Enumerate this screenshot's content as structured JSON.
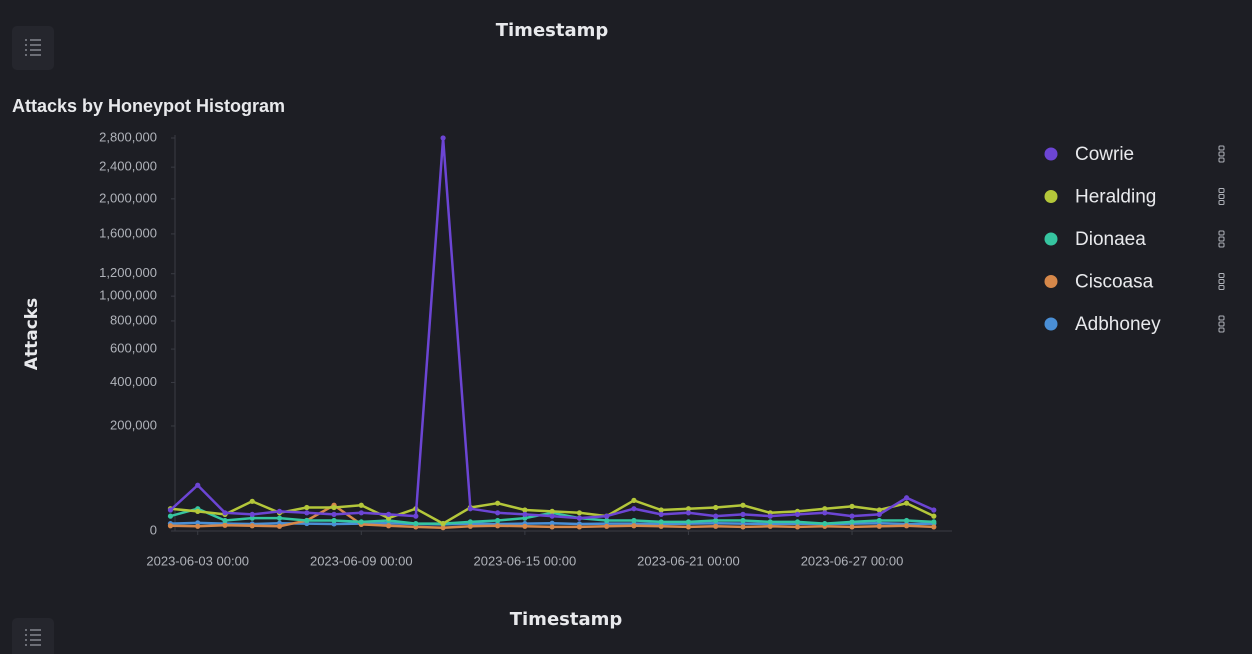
{
  "chart_data": {
    "type": "line",
    "header": "Timestamp",
    "title": "Attacks by Honeypot Histogram",
    "y_label": "Attacks",
    "x_label": "Timestamp",
    "yscale": "sqrt",
    "legend": "right",
    "x": [
      "2023-06-02 00:00",
      "2023-06-03 00:00",
      "2023-06-04 00:00",
      "2023-06-05 00:00",
      "2023-06-06 00:00",
      "2023-06-07 00:00",
      "2023-06-08 00:00",
      "2023-06-09 00:00",
      "2023-06-10 00:00",
      "2023-06-11 00:00",
      "2023-06-12 00:00",
      "2023-06-13 00:00",
      "2023-06-14 00:00",
      "2023-06-15 00:00",
      "2023-06-16 00:00",
      "2023-06-17 00:00",
      "2023-06-18 00:00",
      "2023-06-19 00:00",
      "2023-06-20 00:00",
      "2023-06-21 00:00",
      "2023-06-22 00:00",
      "2023-06-23 00:00",
      "2023-06-24 00:00",
      "2023-06-25 00:00",
      "2023-06-26 00:00",
      "2023-06-27 00:00",
      "2023-06-28 00:00",
      "2023-06-29 00:00",
      "2023-06-30 00:00"
    ],
    "xlim": [
      "2023-06-02 04:00",
      "2023-06-30 16:00"
    ],
    "xticks": [
      "2023-06-03 00:00",
      "2023-06-09 00:00",
      "2023-06-15 00:00",
      "2023-06-21 00:00",
      "2023-06-27 00:00"
    ],
    "ylim": [
      0,
      2800000
    ],
    "yticks": [
      0,
      {
        "value": 200000,
        "label": "200,000"
      },
      {
        "value": 400000,
        "label": "400,000"
      },
      {
        "value": 600000,
        "label": "600,000"
      },
      {
        "value": 800000,
        "label": "800,000"
      },
      {
        "value": 1000000,
        "label": "1,000,000"
      },
      {
        "value": 1200000,
        "label": "1,200,000"
      },
      {
        "value": 1600000,
        "label": "1,600,000"
      },
      {
        "value": 2000000,
        "label": "2,000,000"
      },
      {
        "value": 2400000,
        "label": "2,400,000"
      },
      {
        "value": 2800000,
        "label": "2,800,000"
      }
    ],
    "series": [
      {
        "name": "Cowrie",
        "color": "#6c45d4",
        "values": [
          8000,
          38000,
          6000,
          5000,
          7000,
          6000,
          5000,
          6000,
          5000,
          4000,
          2800000,
          9000,
          6000,
          5000,
          4000,
          3000,
          4000,
          9000,
          5000,
          6000,
          4000,
          5000,
          4000,
          5000,
          6000,
          4000,
          5000,
          20000,
          8000
        ]
      },
      {
        "name": "Heralding",
        "color": "#b4c73a",
        "values": [
          9000,
          7000,
          5000,
          16000,
          6000,
          10000,
          10000,
          12000,
          3000,
          9000,
          1000,
          10000,
          14000,
          8000,
          7000,
          6000,
          4000,
          17000,
          8000,
          9000,
          10000,
          12000,
          6000,
          7000,
          9000,
          11000,
          8000,
          14000,
          4000
        ]
      },
      {
        "name": "Dionaea",
        "color": "#36c5a0",
        "values": [
          4000,
          9000,
          2000,
          3000,
          3000,
          2000,
          2000,
          1500,
          2000,
          1000,
          1000,
          1500,
          2000,
          3000,
          6000,
          3000,
          2000,
          2000,
          1500,
          1500,
          2000,
          2000,
          1500,
          1500,
          1000,
          1500,
          2000,
          2000,
          1500
        ]
      },
      {
        "name": "Ciscoasa",
        "color": "#d6884a",
        "values": [
          500,
          400,
          600,
          500,
          400,
          2000,
          12000,
          800,
          500,
          300,
          200,
          400,
          500,
          400,
          300,
          300,
          400,
          500,
          400,
          300,
          400,
          300,
          400,
          300,
          400,
          300,
          400,
          500,
          300
        ]
      },
      {
        "name": "Adbhoney",
        "color": "#4a8fd6",
        "values": [
          1000,
          1200,
          1000,
          900,
          1100,
          1000,
          900,
          1000,
          1100,
          900,
          800,
          1000,
          900,
          1000,
          1100,
          900,
          1000,
          1000,
          900,
          1000,
          1100,
          1000,
          900,
          1000,
          900,
          1000,
          1100,
          900,
          1000
        ]
      }
    ]
  }
}
